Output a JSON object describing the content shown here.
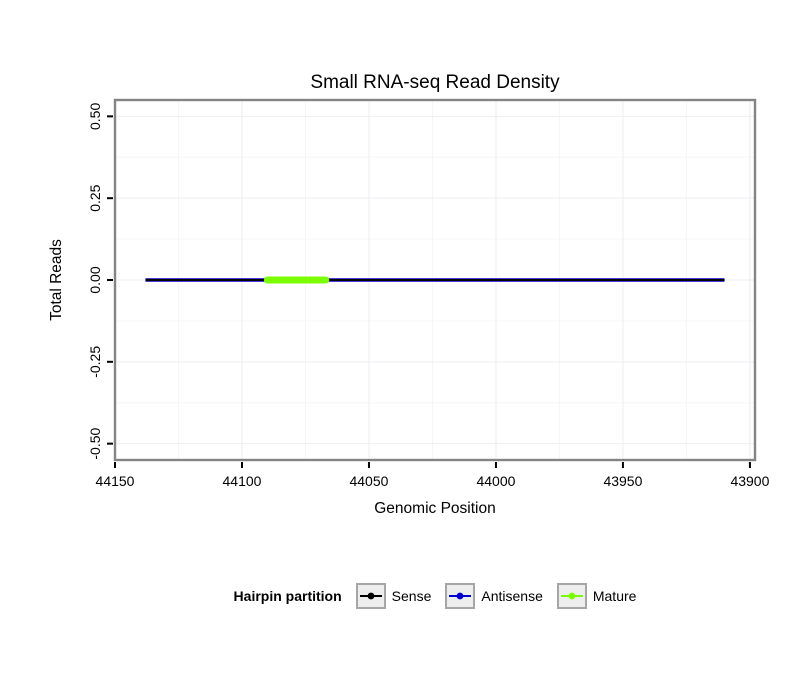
{
  "title": "Small RNA-seq Read Density",
  "chart_data": {
    "type": "line",
    "title": "Small RNA-seq Read Density",
    "xlabel": "Genomic Position",
    "ylabel": "Total Reads",
    "x_reversed": true,
    "xlim": [
      44150,
      43898
    ],
    "ylim": [
      -0.55,
      0.55
    ],
    "grid": true,
    "grid_color": "#ededf3",
    "minor_grid_color": "#f6f6fa",
    "panel_border_color": "#848484",
    "panel_background": "#ffffff",
    "tick_color": "#000000",
    "x_ticks": [
      {
        "value": 44150,
        "label": "44150"
      },
      {
        "value": 44100,
        "label": "44100"
      },
      {
        "value": 44050,
        "label": "44050"
      },
      {
        "value": 44000,
        "label": "44000"
      },
      {
        "value": 43950,
        "label": "43950"
      },
      {
        "value": 43900,
        "label": "43900"
      }
    ],
    "y_ticks": [
      {
        "value": 0.5,
        "label": "0.50"
      },
      {
        "value": 0.25,
        "label": "0.25"
      },
      {
        "value": 0.0,
        "label": "0.00"
      },
      {
        "value": -0.25,
        "label": "-0.25"
      },
      {
        "value": -0.5,
        "label": "-0.50"
      }
    ],
    "series": [
      {
        "name": "Antisense",
        "color": "#0000cd",
        "linewidth": 3.4,
        "linecap": "butt",
        "x": [
          44138,
          43910
        ],
        "y": [
          0,
          0
        ]
      },
      {
        "name": "Sense",
        "color": "#000000",
        "linewidth": 2.0,
        "linecap": "butt",
        "x": [
          44138,
          43910
        ],
        "y": [
          0,
          0
        ]
      },
      {
        "name": "Mature",
        "color": "#7cfc00",
        "linewidth": 7.0,
        "linecap": "round",
        "x": [
          44090,
          44067
        ],
        "y": [
          0,
          0
        ]
      }
    ],
    "legend": {
      "position": "bottom",
      "title": "Hairpin partition",
      "entries": [
        {
          "label": "Sense",
          "color": "#000000"
        },
        {
          "label": "Antisense",
          "color": "#0000cd"
        },
        {
          "label": "Mature",
          "color": "#7cfc00"
        }
      ]
    }
  }
}
